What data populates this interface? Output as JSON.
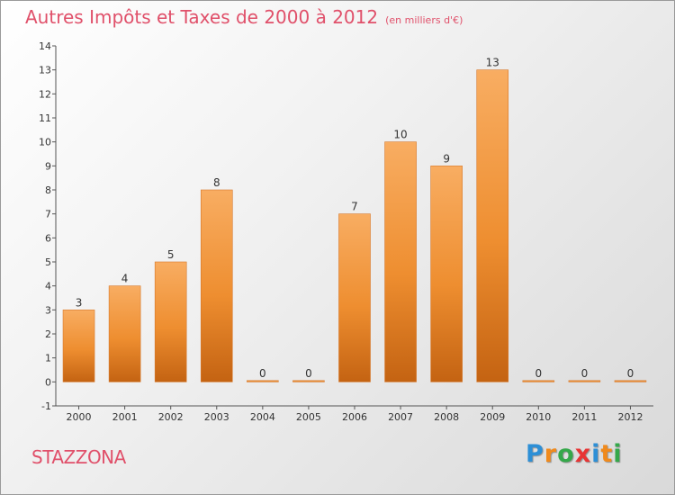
{
  "title": "Autres Impôts et Taxes de 2000 à 2012",
  "title_unit": "(en milliers d'€)",
  "commune": "STAZZONA",
  "logo": {
    "letters": [
      "P",
      "r",
      "o",
      "x",
      "i",
      "t",
      "i"
    ],
    "colors": [
      "#2d8fd6",
      "#f08a1c",
      "#35a84a",
      "#e83434",
      "#2d8fd6",
      "#f08a1c",
      "#35a84a"
    ]
  },
  "colors": {
    "bar": "#f08c2a",
    "bar_light": "#f8ad62",
    "bar_dark": "#c46312",
    "title": "#e0506a"
  },
  "chart_data": {
    "type": "bar",
    "categories": [
      "2000",
      "2001",
      "2002",
      "2003",
      "2004",
      "2005",
      "2006",
      "2007",
      "2008",
      "2009",
      "2010",
      "2011",
      "2012"
    ],
    "values": [
      3,
      4,
      5,
      8,
      0,
      0,
      7,
      10,
      9,
      13,
      0,
      0,
      0
    ],
    "value_labels": [
      "3",
      "4",
      "5",
      "8",
      "0",
      "0",
      "7",
      "10",
      "9",
      "13",
      "0",
      "0",
      "0"
    ],
    "title": "Autres Impôts et Taxes de 2000 à 2012",
    "xlabel": "",
    "ylabel": "",
    "ylim": [
      -1,
      14
    ],
    "yticks": [
      "-1",
      "0",
      "1",
      "2",
      "3",
      "4",
      "5",
      "6",
      "7",
      "8",
      "9",
      "10",
      "11",
      "12",
      "13",
      "14"
    ],
    "grid": false,
    "legend": "none"
  }
}
